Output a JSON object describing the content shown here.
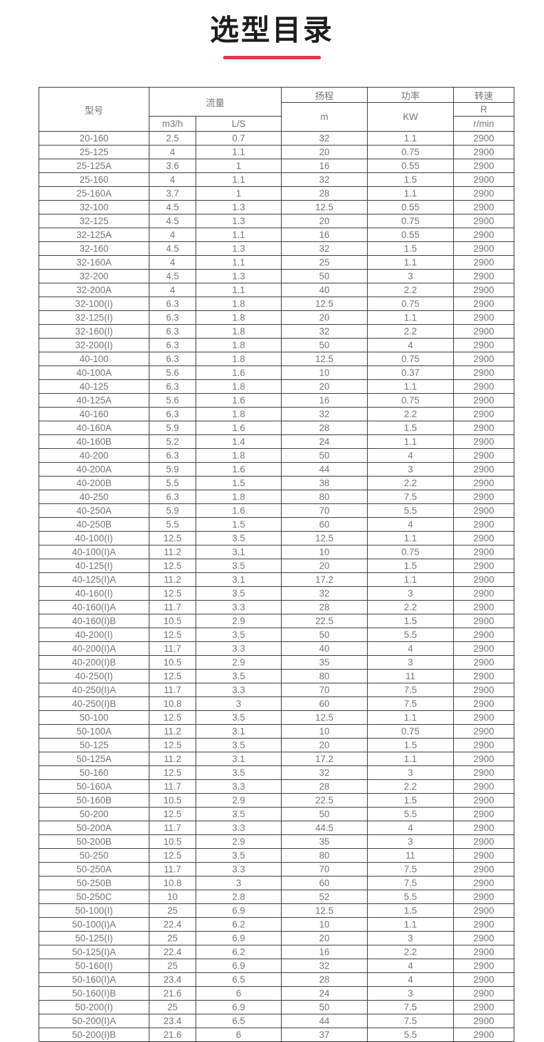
{
  "page": {
    "title": "选型目录",
    "accent_color": "#e23750",
    "background_color": "#ffffff",
    "text_color": "#767676",
    "border_color": "#3c3c3c"
  },
  "table": {
    "header": {
      "model": "型号",
      "flow": "流量",
      "flow_unit_m3h": "m3/h",
      "flow_unit_ls": "L/S",
      "head": "扬程",
      "head_unit": "m",
      "power": "功率",
      "power_unit": "KW",
      "speed": "转速",
      "speed_unit_top": "R",
      "speed_unit_bottom": "r/min"
    },
    "columns": [
      "model",
      "flow_m3h",
      "flow_ls",
      "head_m",
      "power_kw",
      "speed_rmin"
    ],
    "rows": [
      [
        "20-160",
        "2.5",
        "0.7",
        "32",
        "1.1",
        "2900"
      ],
      [
        "25-125",
        "4",
        "1.1",
        "20",
        "0.75",
        "2900"
      ],
      [
        "25-125A",
        "3.6",
        "1",
        "16",
        "0.55",
        "2900"
      ],
      [
        "25-160",
        "4",
        "1.1",
        "32",
        "1.5",
        "2900"
      ],
      [
        "25-160A",
        "3.7",
        "1",
        "28",
        "1.1",
        "2900"
      ],
      [
        "32-100",
        "4.5",
        "1.3",
        "12.5",
        "0.55",
        "2900"
      ],
      [
        "32-125",
        "4.5",
        "1.3",
        "20",
        "0.75",
        "2900"
      ],
      [
        "32-125A",
        "4",
        "1.1",
        "16",
        "0.55",
        "2900"
      ],
      [
        "32-160",
        "4.5",
        "1.3",
        "32",
        "1.5",
        "2900"
      ],
      [
        "32-160A",
        "4",
        "1.1",
        "25",
        "1.1",
        "2900"
      ],
      [
        "32-200",
        "4.5",
        "1.3",
        "50",
        "3",
        "2900"
      ],
      [
        "32-200A",
        "4",
        "1.1",
        "40",
        "2.2",
        "2900"
      ],
      [
        "32-100(I)",
        "6.3",
        "1.8",
        "12.5",
        "0.75",
        "2900"
      ],
      [
        "32-125(I)",
        "6.3",
        "1.8",
        "20",
        "1.1",
        "2900"
      ],
      [
        "32-160(I)",
        "6.3",
        "1.8",
        "32",
        "2.2",
        "2900"
      ],
      [
        "32-200(I)",
        "6.3",
        "1.8",
        "50",
        "4",
        "2900"
      ],
      [
        "40-100",
        "6.3",
        "1.8",
        "12.5",
        "0.75",
        "2900"
      ],
      [
        "40-100A",
        "5.6",
        "1.6",
        "10",
        "0.37",
        "2900"
      ],
      [
        "40-125",
        "6.3",
        "1.8",
        "20",
        "1.1",
        "2900"
      ],
      [
        "40-125A",
        "5.6",
        "1.6",
        "16",
        "0.75",
        "2900"
      ],
      [
        "40-160",
        "6.3",
        "1.8",
        "32",
        "2.2",
        "2900"
      ],
      [
        "40-160A",
        "5.9",
        "1.6",
        "28",
        "1.5",
        "2900"
      ],
      [
        "40-160B",
        "5.2",
        "1.4",
        "24",
        "1.1",
        "2900"
      ],
      [
        "40-200",
        "6.3",
        "1.8",
        "50",
        "4",
        "2900"
      ],
      [
        "40-200A",
        "5.9",
        "1.6",
        "44",
        "3",
        "2900"
      ],
      [
        "40-200B",
        "5.5",
        "1.5",
        "38",
        "2.2",
        "2900"
      ],
      [
        "40-250",
        "6.3",
        "1.8",
        "80",
        "7.5",
        "2900"
      ],
      [
        "40-250A",
        "5.9",
        "1.6",
        "70",
        "5.5",
        "2900"
      ],
      [
        "40-250B",
        "5.5",
        "1.5",
        "60",
        "4",
        "2900"
      ],
      [
        "40-100(I)",
        "12.5",
        "3.5",
        "12.5",
        "1.1",
        "2900"
      ],
      [
        "40-100(I)A",
        "11.2",
        "3.1",
        "10",
        "0.75",
        "2900"
      ],
      [
        "40-125(I)",
        "12.5",
        "3.5",
        "20",
        "1.5",
        "2900"
      ],
      [
        "40-125(I)A",
        "11.2",
        "3.1",
        "17.2",
        "1.1",
        "2900"
      ],
      [
        "40-160(I)",
        "12.5",
        "3.5",
        "32",
        "3",
        "2900"
      ],
      [
        "40-160(I)A",
        "11.7",
        "3.3",
        "28",
        "2.2",
        "2900"
      ],
      [
        "40-160(I)B",
        "10.5",
        "2.9",
        "22.5",
        "1.5",
        "2900"
      ],
      [
        "40-200(I)",
        "12.5",
        "3.5",
        "50",
        "5.5",
        "2900"
      ],
      [
        "40-200(I)A",
        "11.7",
        "3.3",
        "40",
        "4",
        "2900"
      ],
      [
        "40-200(I)B",
        "10.5",
        "2.9",
        "35",
        "3",
        "2900"
      ],
      [
        "40-250(I)",
        "12.5",
        "3.5",
        "80",
        "11",
        "2900"
      ],
      [
        "40-250(I)A",
        "11.7",
        "3.3",
        "70",
        "7.5",
        "2900"
      ],
      [
        "40-250(I)B",
        "10.8",
        "3",
        "60",
        "7.5",
        "2900"
      ],
      [
        "50-100",
        "12.5",
        "3.5",
        "12.5",
        "1.1",
        "2900"
      ],
      [
        "50-100A",
        "11.2",
        "3.1",
        "10",
        "0.75",
        "2900"
      ],
      [
        "50-125",
        "12.5",
        "3.5",
        "20",
        "1.5",
        "2900"
      ],
      [
        "50-125A",
        "11.2",
        "3.1",
        "17.2",
        "1.1",
        "2900"
      ],
      [
        "50-160",
        "12.5",
        "3.5",
        "32",
        "3",
        "2900"
      ],
      [
        "50-160A",
        "11.7",
        "3.3",
        "28",
        "2.2",
        "2900"
      ],
      [
        "50-160B",
        "10.5",
        "2.9",
        "22.5",
        "1.5",
        "2900"
      ],
      [
        "50-200",
        "12.5",
        "3.5",
        "50",
        "5.5",
        "2900"
      ],
      [
        "50-200A",
        "11.7",
        "3.3",
        "44.5",
        "4",
        "2900"
      ],
      [
        "50-200B",
        "10.5",
        "2.9",
        "35",
        "3",
        "2900"
      ],
      [
        "50-250",
        "12.5",
        "3.5",
        "80",
        "11",
        "2900"
      ],
      [
        "50-250A",
        "11.7",
        "3.3",
        "70",
        "7.5",
        "2900"
      ],
      [
        "50-250B",
        "10.8",
        "3",
        "60",
        "7.5",
        "2900"
      ],
      [
        "50-250C",
        "10",
        "2.8",
        "52",
        "5.5",
        "2900"
      ],
      [
        "50-100(I)",
        "25",
        "6.9",
        "12.5",
        "1.5",
        "2900"
      ],
      [
        "50-100(I)A",
        "22.4",
        "6.2",
        "10",
        "1.1",
        "2900"
      ],
      [
        "50-125(I)",
        "25",
        "6.9",
        "20",
        "3",
        "2900"
      ],
      [
        "50-125(I)A",
        "22.4",
        "6.2",
        "16",
        "2.2",
        "2900"
      ],
      [
        "50-160(I)",
        "25",
        "6.9",
        "32",
        "4",
        "2900"
      ],
      [
        "50-160(I)A",
        "23.4",
        "6.5",
        "28",
        "4",
        "2900"
      ],
      [
        "50-160(I)B",
        "21.6",
        "6",
        "24",
        "3",
        "2900"
      ],
      [
        "50-200(I)",
        "25",
        "6.9",
        "50",
        "7.5",
        "2900"
      ],
      [
        "50-200(I)A",
        "23.4",
        "6.5",
        "44",
        "7.5",
        "2900"
      ],
      [
        "50-200(I)B",
        "21.6",
        "6",
        "37",
        "5.5",
        "2900"
      ]
    ]
  }
}
